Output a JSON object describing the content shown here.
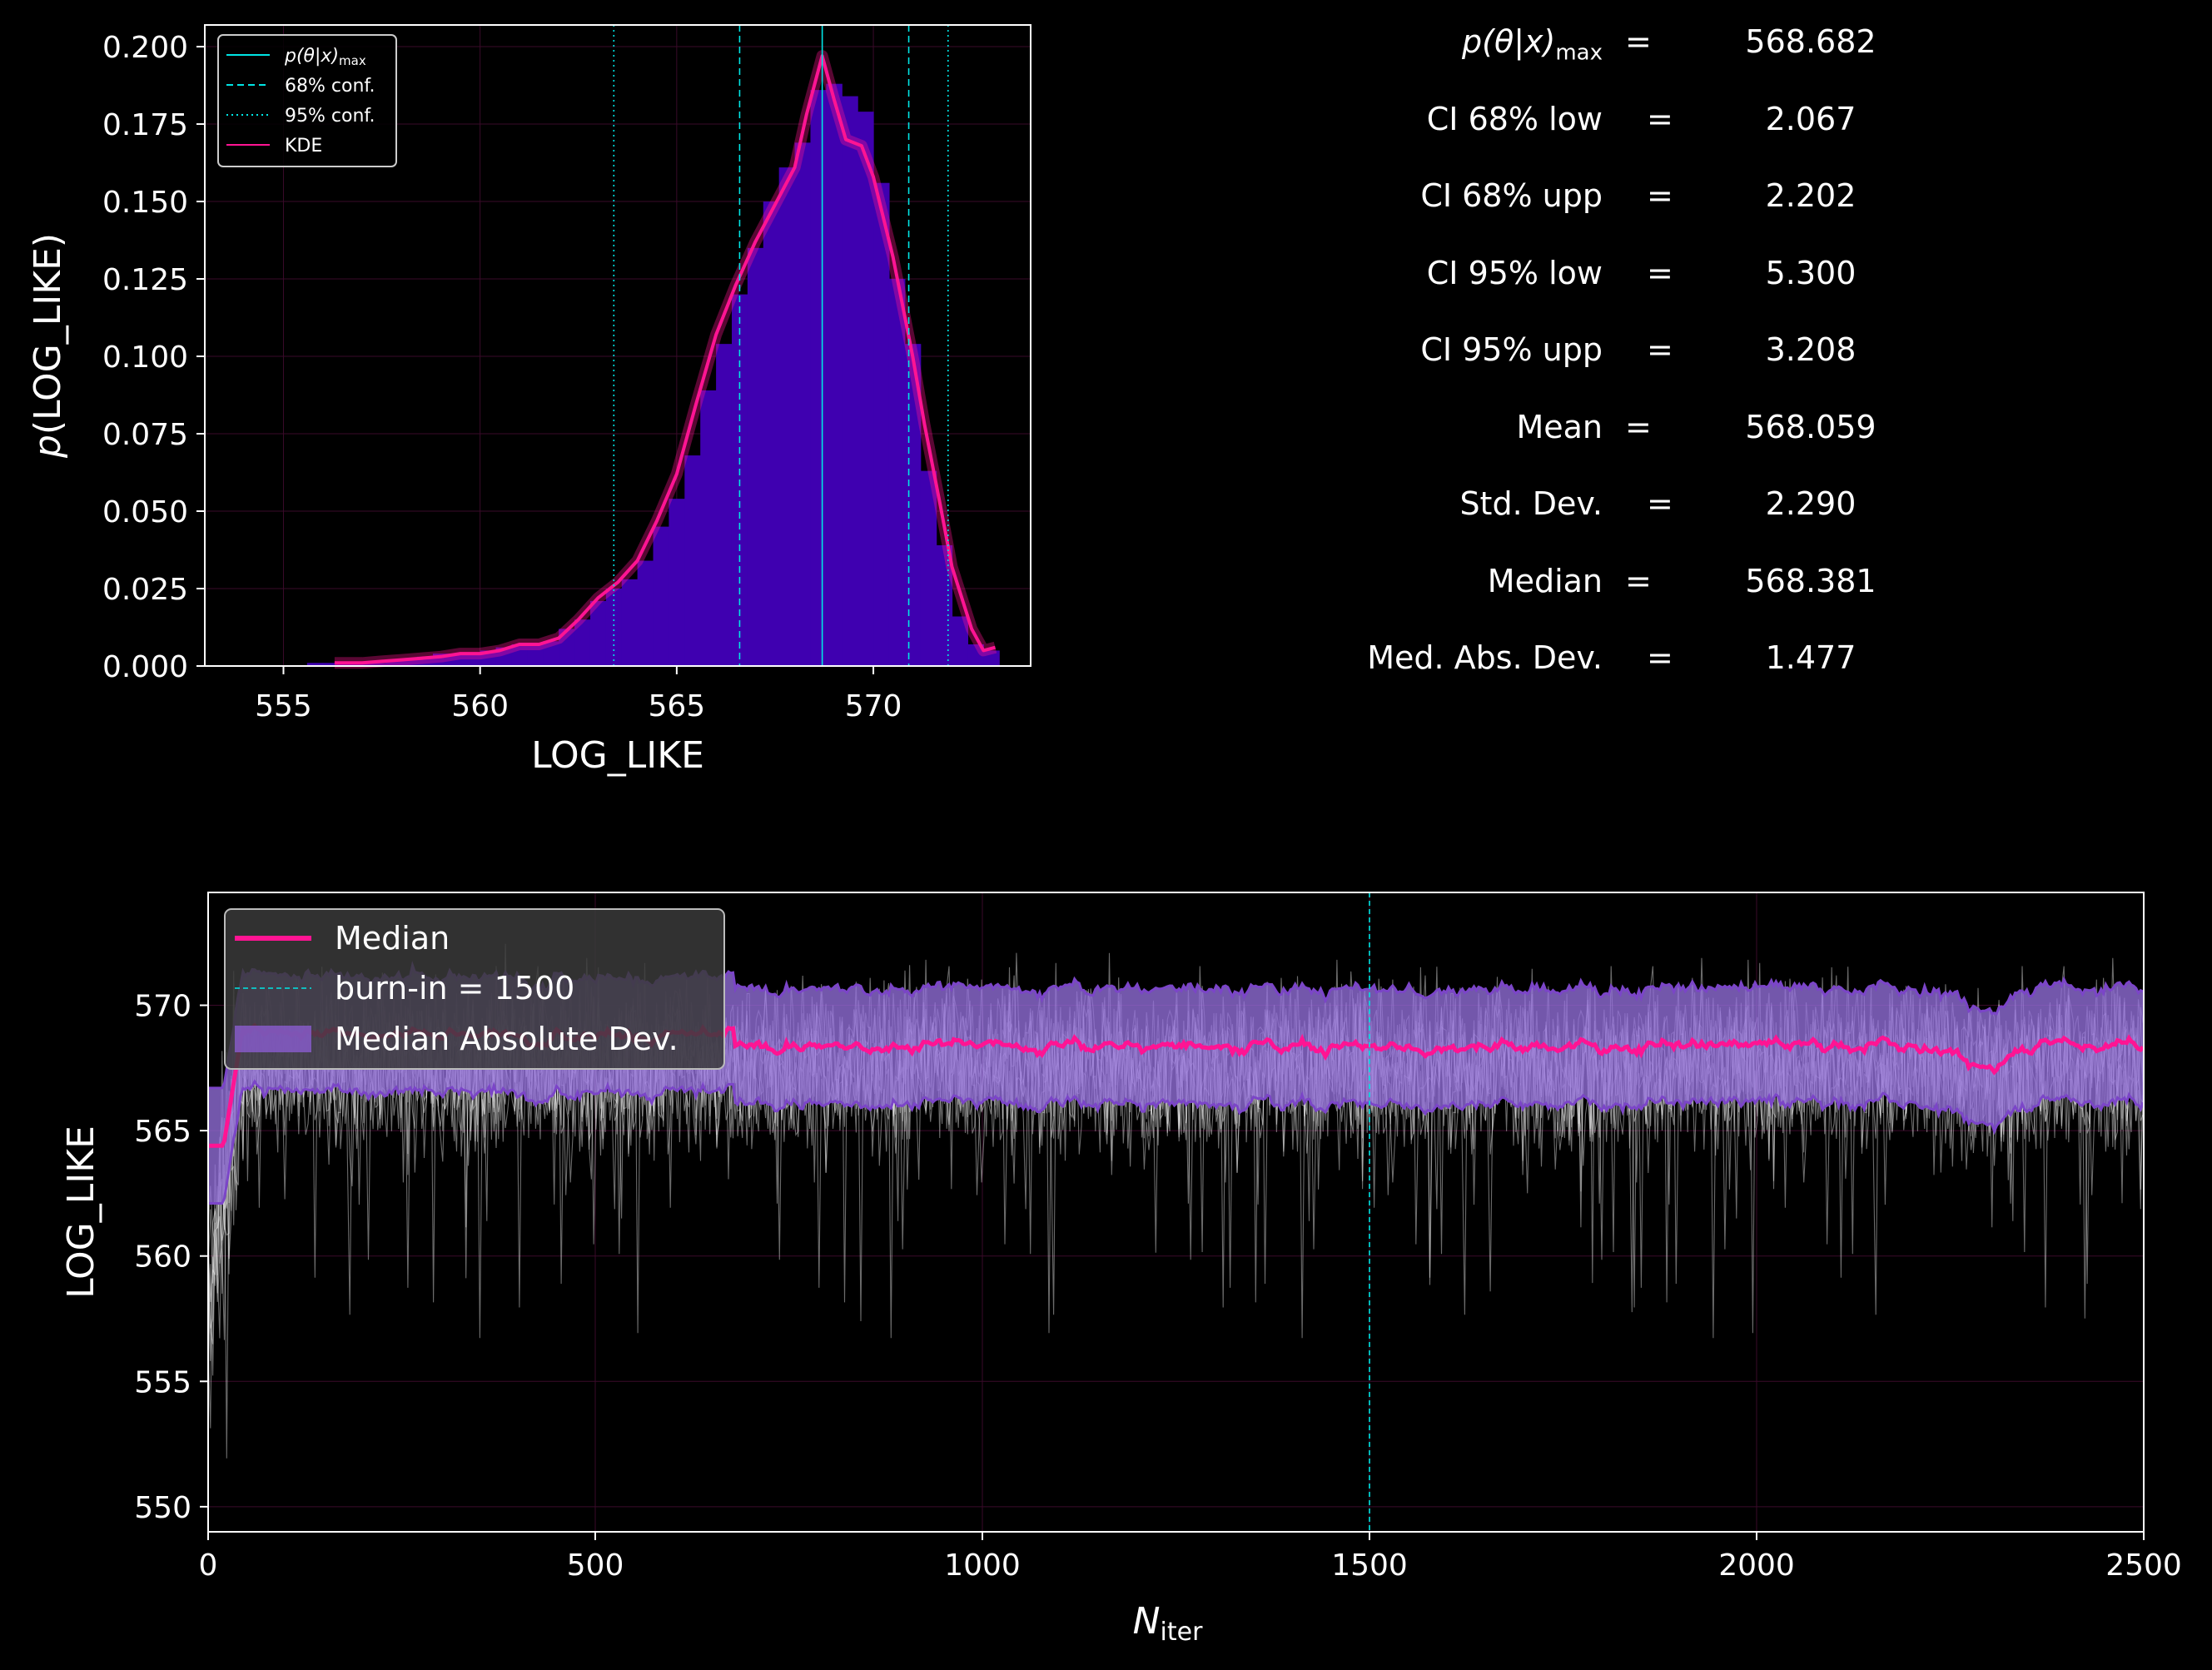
{
  "stats": [
    {
      "label_main": "p(θ|x)",
      "label_sub": "max",
      "eq": "=",
      "value": "568.682"
    },
    {
      "label_main": "CI 68% low",
      "label_sub": "",
      "eq": "=",
      "value": "2.067"
    },
    {
      "label_main": "CI 68% upp",
      "label_sub": "",
      "eq": "=",
      "value": "2.202"
    },
    {
      "label_main": "CI 95% low",
      "label_sub": "",
      "eq": "=",
      "value": "5.300"
    },
    {
      "label_main": "CI 95% upp",
      "label_sub": "",
      "eq": "=",
      "value": "3.208"
    },
    {
      "label_main": "Mean",
      "label_sub": "",
      "eq": "=",
      "value": "568.059"
    },
    {
      "label_main": "Std.  Dev.",
      "label_sub": "",
      "eq": "=",
      "value": "2.290"
    },
    {
      "label_main": "Median",
      "label_sub": "",
      "eq": "=",
      "value": "568.381"
    },
    {
      "label_main": "Med. Abs. Dev.",
      "label_sub": "",
      "eq": "=",
      "value": "1.477"
    }
  ],
  "chart_data": [
    {
      "type": "bar",
      "xlabel": "LOG_LIKE",
      "ylabel": "p(LOG_LIKE)",
      "xlim": [
        553,
        574
      ],
      "ylim": [
        0,
        0.207
      ],
      "xticks": [
        "555",
        "560",
        "565",
        "570"
      ],
      "yticks": [
        "0.000",
        "0.025",
        "0.050",
        "0.075",
        "0.100",
        "0.125",
        "0.150",
        "0.175",
        "0.200"
      ],
      "bin_edges": [
        555.6,
        556.0,
        556.4,
        556.8,
        557.2,
        557.6,
        558.0,
        558.4,
        558.8,
        559.2,
        559.6,
        560.0,
        560.4,
        560.8,
        561.2,
        561.6,
        562.0,
        562.4,
        562.8,
        563.2,
        563.6,
        564.0,
        564.4,
        564.8,
        565.2,
        565.6,
        566.0,
        566.4,
        566.8,
        567.2,
        567.6,
        568.0,
        568.4,
        568.8,
        569.2,
        569.6,
        570.0,
        570.4,
        570.8,
        571.2,
        571.6,
        572.0,
        572.4,
        572.8,
        573.2
      ],
      "hist_values": [
        0.001,
        0.001,
        0.001,
        0.001,
        0.001,
        0.002,
        0.002,
        0.003,
        0.004,
        0.004,
        0.004,
        0.005,
        0.006,
        0.007,
        0.007,
        0.008,
        0.012,
        0.015,
        0.021,
        0.025,
        0.028,
        0.034,
        0.045,
        0.054,
        0.068,
        0.089,
        0.104,
        0.12,
        0.135,
        0.15,
        0.161,
        0.169,
        0.186,
        0.188,
        0.184,
        0.179,
        0.156,
        0.125,
        0.104,
        0.063,
        0.039,
        0.016,
        0.007,
        0.005
      ],
      "kde_x": [
        556.3,
        557,
        557.5,
        558,
        558.5,
        559,
        559.5,
        560,
        560.5,
        561,
        561.5,
        562,
        562.5,
        563,
        563.5,
        564,
        564.5,
        565,
        565.5,
        566,
        566.5,
        567,
        567.5,
        568,
        568.3,
        568.7,
        569,
        569.3,
        569.7,
        570,
        570.5,
        571,
        571.3,
        571.7,
        572,
        572.5,
        572.8,
        573.1
      ],
      "kde_y": [
        0.001,
        0.001,
        0.0015,
        0.002,
        0.0025,
        0.003,
        0.004,
        0.004,
        0.005,
        0.007,
        0.007,
        0.009,
        0.015,
        0.022,
        0.027,
        0.034,
        0.047,
        0.062,
        0.085,
        0.107,
        0.123,
        0.137,
        0.149,
        0.161,
        0.178,
        0.197,
        0.183,
        0.17,
        0.168,
        0.158,
        0.132,
        0.1,
        0.078,
        0.052,
        0.032,
        0.012,
        0.005,
        0.006
      ],
      "vlines": [
        {
          "x": 568.7,
          "style": "solid"
        },
        {
          "x": 566.6,
          "style": "dashed"
        },
        {
          "x": 570.9,
          "style": "dashed"
        },
        {
          "x": 563.4,
          "style": "dotted"
        },
        {
          "x": 571.9,
          "style": "dotted"
        }
      ],
      "legend": {
        "position": "upper-left",
        "entries": [
          {
            "label": "p(θ|x)",
            "sub": "max",
            "style": "solid",
            "color": "#00e5e5"
          },
          {
            "label": "68% conf.",
            "sub": "",
            "style": "dashed",
            "color": "#00e5e5"
          },
          {
            "label": "95% conf.",
            "sub": "",
            "style": "dotted",
            "color": "#00e5e5"
          },
          {
            "label": "KDE",
            "sub": "",
            "style": "solid",
            "color": "#ff1493"
          }
        ]
      },
      "colors": {
        "bars": "#3f00b0",
        "kde": "#ff1493",
        "lines": "#00e5e5",
        "grid": "#3a0a2a"
      }
    },
    {
      "type": "line",
      "xlabel": "N",
      "xlabel_sub": "iter",
      "ylabel": "LOG_LIKE",
      "xlim": [
        0,
        2500
      ],
      "ylim": [
        549,
        574.5
      ],
      "xticks": [
        "0",
        "500",
        "1000",
        "1500",
        "2000",
        "2500"
      ],
      "yticks": [
        "550",
        "555",
        "560",
        "565",
        "570"
      ],
      "burn_in": 1500,
      "median_level": 568.4,
      "mad_band": [
        566.0,
        570.5
      ],
      "chain_range": [
        556,
        573
      ],
      "legend": {
        "position": "upper-left",
        "entries": [
          {
            "label": "Median",
            "color": "#ff1493"
          },
          {
            "label": "burn-in = 1500",
            "color": "#00e5e5"
          },
          {
            "label": "Median Absolute Dev.",
            "color": "#8a5cd0"
          }
        ]
      },
      "colors": {
        "median": "#ff1493",
        "band": "#9370db",
        "chains": "#ffffff",
        "burn": "#00e5e5"
      }
    }
  ]
}
